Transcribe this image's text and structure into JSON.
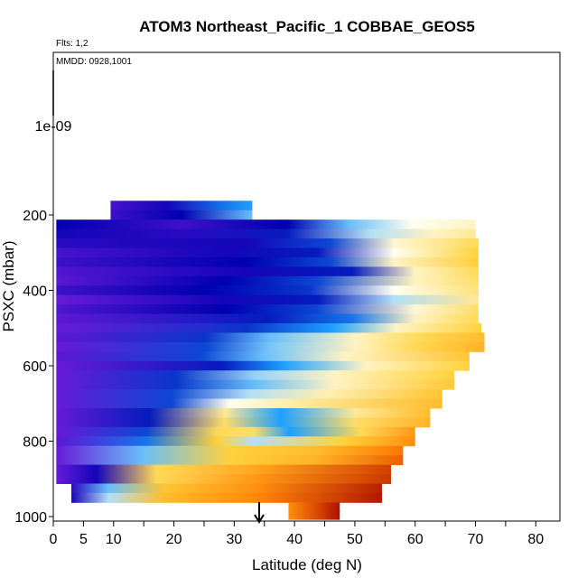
{
  "chart_data": {
    "type": "heatmap",
    "title": "ATOM3 Northeast_Pacific_1 COBBAE_GEOS5",
    "annotations": [
      "Flts: 1,2",
      "MMDD: 0928,1001"
    ],
    "xlabel": "Latitude (deg N)",
    "ylabel": "PSXC (mbar)",
    "xlim": [
      0,
      84
    ],
    "ylim": [
      1000,
      0
    ],
    "x_ticks": [
      0,
      5,
      10,
      20,
      30,
      40,
      50,
      60,
      70,
      80
    ],
    "y_ticks": [
      200,
      400,
      600,
      800,
      1000
    ],
    "y_extra_label": "1e-09",
    "colors": {
      "low": "#7a1fe0",
      "mid_low": "#0000b0",
      "mid": "#1ea0ff",
      "neutral": "#fffef0",
      "mid_high": "#ffd23c",
      "high": "#ff7800",
      "top": "#a00000"
    },
    "pressure_bands": [
      {
        "p": 175,
        "lat_start": 9.5,
        "lat_end": 33.0,
        "profile": [
          [
            0,
            0.05
          ],
          [
            0.4,
            0.1
          ],
          [
            0.8,
            0.25
          ],
          [
            1,
            0.3
          ]
        ]
      },
      {
        "p": 200,
        "lat_start": 9.5,
        "lat_end": 33.0,
        "profile": [
          [
            0,
            0.06
          ],
          [
            0.5,
            0.12
          ],
          [
            1,
            0.35
          ]
        ]
      },
      {
        "p": 225,
        "lat_start": 0.5,
        "lat_end": 70.0,
        "profile": [
          [
            0,
            0.12
          ],
          [
            0.3,
            0.06
          ],
          [
            0.55,
            0.12
          ],
          [
            0.7,
            0.35
          ],
          [
            0.85,
            0.45
          ],
          [
            1,
            0.5
          ]
        ]
      },
      {
        "p": 250,
        "lat_start": 0.5,
        "lat_end": 70.0,
        "profile": [
          [
            0,
            0.1
          ],
          [
            0.3,
            0.08
          ],
          [
            0.55,
            0.15
          ],
          [
            0.75,
            0.4
          ],
          [
            0.9,
            0.5
          ],
          [
            1,
            0.55
          ]
        ]
      },
      {
        "p": 275,
        "lat_start": 0.5,
        "lat_end": 70.5,
        "profile": [
          [
            0,
            0.08
          ],
          [
            0.45,
            0.1
          ],
          [
            0.65,
            0.2
          ],
          [
            0.8,
            0.48
          ],
          [
            1,
            0.62
          ]
        ]
      },
      {
        "p": 300,
        "lat_start": 0.5,
        "lat_end": 70.5,
        "profile": [
          [
            0,
            0.05
          ],
          [
            0.4,
            0.1
          ],
          [
            0.62,
            0.15
          ],
          [
            0.8,
            0.45
          ],
          [
            1,
            0.65
          ]
        ]
      },
      {
        "p": 325,
        "lat_start": 0.5,
        "lat_end": 70.5,
        "profile": [
          [
            0,
            0.06
          ],
          [
            0.45,
            0.12
          ],
          [
            0.65,
            0.2
          ],
          [
            0.8,
            0.5
          ],
          [
            1,
            0.66
          ]
        ]
      },
      {
        "p": 350,
        "lat_start": 0.5,
        "lat_end": 70.5,
        "profile": [
          [
            0,
            0.04
          ],
          [
            0.45,
            0.1
          ],
          [
            0.7,
            0.15
          ],
          [
            0.85,
            0.5
          ],
          [
            1,
            0.62
          ]
        ]
      },
      {
        "p": 375,
        "lat_start": 0.5,
        "lat_end": 70.5,
        "profile": [
          [
            0,
            0.03
          ],
          [
            0.4,
            0.12
          ],
          [
            0.62,
            0.2
          ],
          [
            0.85,
            0.5
          ],
          [
            1,
            0.6
          ]
        ]
      },
      {
        "p": 400,
        "lat_start": 0.5,
        "lat_end": 70.5,
        "profile": [
          [
            0,
            0.06
          ],
          [
            0.35,
            0.12
          ],
          [
            0.6,
            0.18
          ],
          [
            0.8,
            0.45
          ],
          [
            1,
            0.58
          ]
        ]
      },
      {
        "p": 425,
        "lat_start": 0.5,
        "lat_end": 70.5,
        "profile": [
          [
            0,
            0.02
          ],
          [
            0.4,
            0.1
          ],
          [
            0.62,
            0.15
          ],
          [
            0.8,
            0.4
          ],
          [
            1,
            0.55
          ]
        ]
      },
      {
        "p": 450,
        "lat_start": 0.5,
        "lat_end": 70.5,
        "profile": [
          [
            0,
            0.04
          ],
          [
            0.4,
            0.12
          ],
          [
            0.62,
            0.2
          ],
          [
            0.85,
            0.48
          ],
          [
            1,
            0.6
          ]
        ]
      },
      {
        "p": 475,
        "lat_start": 0.5,
        "lat_end": 70.5,
        "profile": [
          [
            0,
            0.03
          ],
          [
            0.5,
            0.15
          ],
          [
            0.7,
            0.25
          ],
          [
            0.85,
            0.5
          ],
          [
            1,
            0.62
          ]
        ]
      },
      {
        "p": 500,
        "lat_start": 0.5,
        "lat_end": 71.0,
        "profile": [
          [
            0,
            0.02
          ],
          [
            0.45,
            0.18
          ],
          [
            0.65,
            0.3
          ],
          [
            0.8,
            0.5
          ],
          [
            1,
            0.65
          ]
        ]
      },
      {
        "p": 525,
        "lat_start": 0.5,
        "lat_end": 71.5,
        "profile": [
          [
            0,
            0.03
          ],
          [
            0.35,
            0.18
          ],
          [
            0.5,
            0.35
          ],
          [
            0.7,
            0.5
          ],
          [
            0.85,
            0.62
          ],
          [
            1,
            0.7
          ]
        ]
      },
      {
        "p": 550,
        "lat_start": 0.5,
        "lat_end": 71.5,
        "profile": [
          [
            0,
            0.02
          ],
          [
            0.35,
            0.2
          ],
          [
            0.5,
            0.36
          ],
          [
            0.7,
            0.5
          ],
          [
            0.85,
            0.63
          ],
          [
            1,
            0.72
          ]
        ]
      },
      {
        "p": 575,
        "lat_start": 0.5,
        "lat_end": 69.0,
        "profile": [
          [
            0,
            0.03
          ],
          [
            0.35,
            0.2
          ],
          [
            0.5,
            0.35
          ],
          [
            0.7,
            0.5
          ],
          [
            1,
            0.68
          ]
        ]
      },
      {
        "p": 600,
        "lat_start": 0.5,
        "lat_end": 69.0,
        "profile": [
          [
            0,
            0.02
          ],
          [
            0.4,
            0.15
          ],
          [
            0.55,
            0.3
          ],
          [
            0.75,
            0.5
          ],
          [
            1,
            0.65
          ]
        ]
      },
      {
        "p": 625,
        "lat_start": 0.5,
        "lat_end": 66.5,
        "profile": [
          [
            0,
            0.02
          ],
          [
            0.3,
            0.18
          ],
          [
            0.5,
            0.38
          ],
          [
            0.7,
            0.5
          ],
          [
            1,
            0.65
          ]
        ]
      },
      {
        "p": 650,
        "lat_start": 0.5,
        "lat_end": 66.5,
        "profile": [
          [
            0,
            0.02
          ],
          [
            0.3,
            0.18
          ],
          [
            0.5,
            0.35
          ],
          [
            0.7,
            0.5
          ],
          [
            1,
            0.67
          ]
        ]
      },
      {
        "p": 675,
        "lat_start": 0.5,
        "lat_end": 64.5,
        "profile": [
          [
            0,
            0.02
          ],
          [
            0.3,
            0.2
          ],
          [
            0.5,
            0.4
          ],
          [
            0.7,
            0.52
          ],
          [
            1,
            0.68
          ]
        ]
      },
      {
        "p": 700,
        "lat_start": 0.5,
        "lat_end": 64.5,
        "profile": [
          [
            0,
            0.02
          ],
          [
            0.3,
            0.2
          ],
          [
            0.45,
            0.45
          ],
          [
            0.65,
            0.55
          ],
          [
            1,
            0.7
          ]
        ]
      },
      {
        "p": 725,
        "lat_start": 0.5,
        "lat_end": 62.5,
        "profile": [
          [
            0,
            0.02
          ],
          [
            0.25,
            0.15
          ],
          [
            0.45,
            0.55
          ],
          [
            0.6,
            0.3
          ],
          [
            0.8,
            0.55
          ],
          [
            1,
            0.7
          ]
        ]
      },
      {
        "p": 750,
        "lat_start": 0.5,
        "lat_end": 62.5,
        "profile": [
          [
            0,
            0.02
          ],
          [
            0.25,
            0.15
          ],
          [
            0.45,
            0.6
          ],
          [
            0.6,
            0.3
          ],
          [
            0.8,
            0.6
          ],
          [
            1,
            0.72
          ]
        ]
      },
      {
        "p": 775,
        "lat_start": 0.5,
        "lat_end": 60.0,
        "profile": [
          [
            0,
            0.02
          ],
          [
            0.25,
            0.2
          ],
          [
            0.45,
            0.62
          ],
          [
            0.55,
            0.6
          ],
          [
            0.65,
            0.3
          ],
          [
            0.85,
            0.62
          ],
          [
            1,
            0.78
          ]
        ]
      },
      {
        "p": 800,
        "lat_start": 0.5,
        "lat_end": 60.0,
        "profile": [
          [
            0,
            0.03
          ],
          [
            0.25,
            0.25
          ],
          [
            0.45,
            0.65
          ],
          [
            0.55,
            0.4
          ],
          [
            0.8,
            0.65
          ],
          [
            1,
            0.8
          ]
        ]
      },
      {
        "p": 825,
        "lat_start": 0.5,
        "lat_end": 58.0,
        "profile": [
          [
            0,
            0.02
          ],
          [
            0.25,
            0.35
          ],
          [
            0.5,
            0.65
          ],
          [
            0.75,
            0.7
          ],
          [
            1,
            0.85
          ]
        ]
      },
      {
        "p": 850,
        "lat_start": 0.5,
        "lat_end": 58.0,
        "profile": [
          [
            0,
            0.02
          ],
          [
            0.25,
            0.35
          ],
          [
            0.5,
            0.65
          ],
          [
            0.75,
            0.72
          ],
          [
            1,
            0.88
          ]
        ]
      },
      {
        "p": 875,
        "lat_start": 0.5,
        "lat_end": 56.0,
        "profile": [
          [
            0,
            0.02
          ],
          [
            0.12,
            0.1
          ],
          [
            0.3,
            0.62
          ],
          [
            0.6,
            0.75
          ],
          [
            1,
            0.92
          ]
        ]
      },
      {
        "p": 900,
        "lat_start": 0.5,
        "lat_end": 56.0,
        "profile": [
          [
            0,
            0.02
          ],
          [
            0.12,
            0.1
          ],
          [
            0.3,
            0.62
          ],
          [
            0.6,
            0.78
          ],
          [
            1,
            0.93
          ]
        ]
      },
      {
        "p": 925,
        "lat_start": 3.0,
        "lat_end": 54.5,
        "profile": [
          [
            0,
            0.08
          ],
          [
            0.12,
            0.35
          ],
          [
            0.3,
            0.68
          ],
          [
            0.6,
            0.8
          ],
          [
            1,
            0.96
          ]
        ]
      },
      {
        "p": 950,
        "lat_start": 3.0,
        "lat_end": 54.5,
        "profile": [
          [
            0,
            0.1
          ],
          [
            0.12,
            0.4
          ],
          [
            0.3,
            0.7
          ],
          [
            0.6,
            0.82
          ],
          [
            1,
            0.97
          ]
        ]
      },
      {
        "p": 975,
        "lat_start": 39.0,
        "lat_end": 47.5,
        "profile": [
          [
            0,
            0.8
          ],
          [
            0.5,
            0.9
          ],
          [
            1,
            0.98
          ]
        ]
      },
      {
        "p": 995,
        "lat_start": 39.0,
        "lat_end": 47.5,
        "profile": [
          [
            0,
            0.8
          ],
          [
            0.5,
            0.9
          ],
          [
            1,
            0.98
          ]
        ]
      }
    ]
  }
}
